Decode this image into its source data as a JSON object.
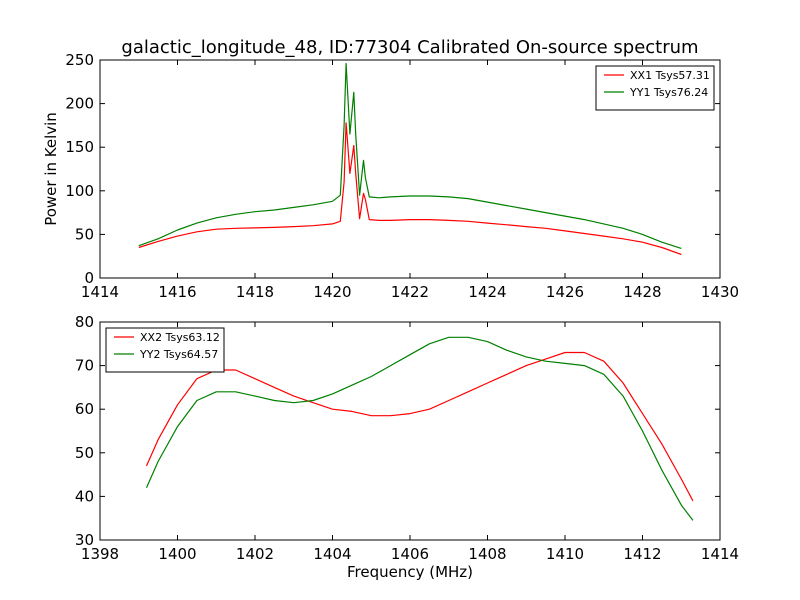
{
  "title": "galactic_longitude_48, ID:77304 Calibrated On-source spectrum",
  "chart_data": [
    {
      "type": "line",
      "ylabel": "Power in Kelvin",
      "xlabel": "",
      "xlim": [
        1414,
        1430
      ],
      "ylim": [
        0,
        250
      ],
      "xticks": [
        "1414",
        "1416",
        "1418",
        "1420",
        "1422",
        "1424",
        "1426",
        "1428",
        "1430"
      ],
      "yticks": [
        "0",
        "50",
        "100",
        "150",
        "200",
        "250"
      ],
      "legend_position": "top-right",
      "series": [
        {
          "name": "XX1 Tsys57.31",
          "color": "#ff0000",
          "x": [
            1415,
            1415.5,
            1416,
            1416.5,
            1417,
            1417.5,
            1418,
            1418.5,
            1419,
            1419.5,
            1420,
            1420.2,
            1420.3,
            1420.35,
            1420.45,
            1420.55,
            1420.6,
            1420.7,
            1420.8,
            1420.85,
            1420.95,
            1421.2,
            1421.5,
            1422,
            1422.5,
            1423,
            1423.5,
            1424,
            1424.5,
            1425,
            1425.5,
            1426,
            1426.5,
            1427,
            1427.5,
            1428,
            1428.5,
            1429
          ],
          "y": [
            35,
            42,
            48,
            53,
            56,
            57,
            57.5,
            58,
            59,
            60,
            62,
            65,
            110,
            178,
            120,
            152,
            120,
            68,
            97,
            90,
            67,
            66,
            66,
            67,
            67,
            66,
            65,
            63,
            61,
            59,
            57,
            54,
            51,
            48,
            45,
            41,
            35,
            27
          ]
        },
        {
          "name": "YY1 Tsys76.24",
          "color": "#008000",
          "x": [
            1415,
            1415.5,
            1416,
            1416.5,
            1417,
            1417.5,
            1418,
            1418.5,
            1419,
            1419.5,
            1420,
            1420.2,
            1420.3,
            1420.35,
            1420.45,
            1420.55,
            1420.6,
            1420.7,
            1420.8,
            1420.85,
            1420.95,
            1421.2,
            1421.5,
            1422,
            1422.5,
            1423,
            1423.5,
            1424,
            1424.5,
            1425,
            1425.5,
            1426,
            1426.5,
            1427,
            1427.5,
            1428,
            1428.5,
            1429
          ],
          "y": [
            37,
            45,
            55,
            63,
            69,
            73,
            76,
            78,
            81,
            84,
            88,
            95,
            175,
            246,
            165,
            213,
            165,
            95,
            135,
            115,
            93,
            92,
            93,
            94,
            94,
            93,
            91,
            87,
            83,
            79,
            75,
            71,
            67,
            62,
            57,
            50,
            41,
            34
          ]
        }
      ]
    },
    {
      "type": "line",
      "ylabel": "",
      "xlabel": "Frequency (MHz)",
      "xlim": [
        1398,
        1414
      ],
      "ylim": [
        30,
        80
      ],
      "xticks": [
        "1398",
        "1400",
        "1402",
        "1404",
        "1406",
        "1408",
        "1410",
        "1412",
        "1414"
      ],
      "yticks": [
        "30",
        "40",
        "50",
        "60",
        "70",
        "80"
      ],
      "legend_position": "top-left",
      "series": [
        {
          "name": "XX2 Tsys63.12",
          "color": "#ff0000",
          "x": [
            1399.2,
            1399.5,
            1400,
            1400.5,
            1401,
            1401.5,
            1402,
            1402.5,
            1403,
            1403.5,
            1404,
            1404.5,
            1405,
            1405.5,
            1406,
            1406.5,
            1407,
            1407.5,
            1408,
            1408.5,
            1409,
            1409.5,
            1410,
            1410.5,
            1411,
            1411.5,
            1412,
            1412.5,
            1413,
            1413.3
          ],
          "y": [
            47,
            53,
            61,
            67,
            69,
            69,
            67,
            65,
            63,
            61.5,
            60,
            59.5,
            58.5,
            58.5,
            59,
            60,
            62,
            64,
            66,
            68,
            70,
            71.5,
            73,
            73,
            71,
            66,
            59,
            52,
            44,
            39
          ]
        },
        {
          "name": "YY2 Tsys64.57",
          "color": "#008000",
          "x": [
            1399.2,
            1399.5,
            1400,
            1400.5,
            1401,
            1401.5,
            1402,
            1402.5,
            1403,
            1403.5,
            1404,
            1404.5,
            1405,
            1405.5,
            1406,
            1406.5,
            1407,
            1407.5,
            1408,
            1408.5,
            1409,
            1409.5,
            1410,
            1410.5,
            1411,
            1411.5,
            1412,
            1412.5,
            1413,
            1413.3
          ],
          "y": [
            42,
            48,
            56,
            62,
            64,
            64,
            63,
            62,
            61.5,
            62,
            63.5,
            65.5,
            67.5,
            70,
            72.5,
            75,
            76.5,
            76.5,
            75.5,
            73.5,
            72,
            71,
            70.5,
            70,
            68,
            63,
            55,
            46,
            38,
            34.5
          ]
        }
      ]
    }
  ]
}
